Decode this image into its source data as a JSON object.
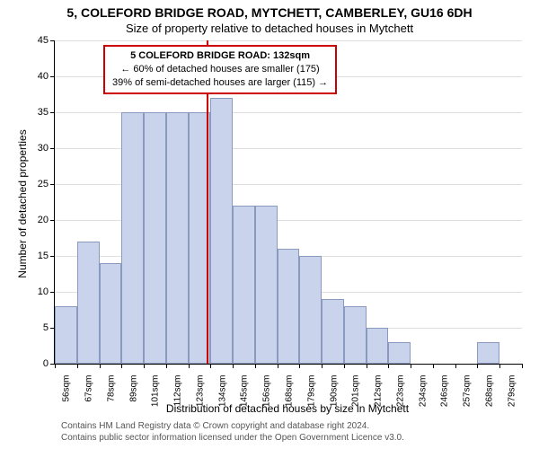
{
  "title_main": "5, COLEFORD BRIDGE ROAD, MYTCHETT, CAMBERLEY, GU16 6DH",
  "title_sub": "Size of property relative to detached houses in Mytchett",
  "y_axis_label": "Number of detached properties",
  "x_axis_label": "Distribution of detached houses by size in Mytchett",
  "footer_line1": "Contains HM Land Registry data © Crown copyright and database right 2024.",
  "footer_line2": "Contains public sector information licensed under the Open Government Licence v3.0.",
  "info_box": {
    "line1": "5 COLEFORD BRIDGE ROAD: 132sqm",
    "line2": "← 60% of detached houses are smaller (175)",
    "line3": "39% of semi-detached houses are larger (115) →"
  },
  "chart": {
    "type": "histogram",
    "ylim": [
      0,
      45
    ],
    "ytick_step": 5,
    "x_categories": [
      "56sqm",
      "67sqm",
      "78sqm",
      "89sqm",
      "101sqm",
      "112sqm",
      "123sqm",
      "134sqm",
      "145sqm",
      "156sqm",
      "168sqm",
      "179sqm",
      "190sqm",
      "201sqm",
      "212sqm",
      "223sqm",
      "234sqm",
      "246sqm",
      "257sqm",
      "268sqm",
      "279sqm"
    ],
    "values": [
      8,
      17,
      14,
      35,
      35,
      35,
      35,
      37,
      22,
      22,
      16,
      15,
      9,
      8,
      5,
      3,
      0,
      0,
      0,
      3,
      0
    ],
    "bar_fill": "#c9d4ec",
    "bar_border": "#8a9abf",
    "marker_color": "#cc0000",
    "marker_value": 132,
    "grid_color": "#e0e0e0",
    "background_color": "#ffffff",
    "title_fontsize": 14,
    "sub_fontsize": 13,
    "axis_label_fontsize": 12,
    "tick_fontsize": 11
  }
}
